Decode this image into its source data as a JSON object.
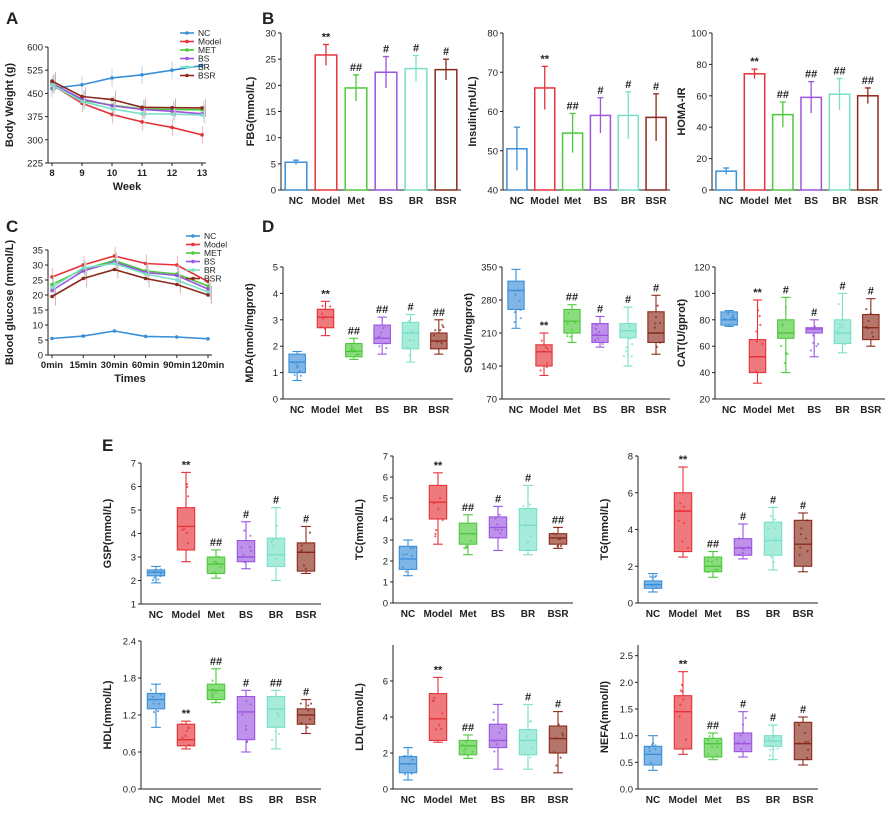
{
  "figure": {
    "panel_letters": [
      "A",
      "B",
      "C",
      "D",
      "E"
    ]
  },
  "colors": {
    "NC": "#3a8fd9",
    "Model": "#e53238",
    "MET": "#4cc93a",
    "BS": "#9b55e0",
    "BR": "#78e0c6",
    "BSR": "#8b2a1a"
  },
  "chart_data": [
    {
      "id": "A",
      "type": "line",
      "letter": "A",
      "title": "",
      "xlabel": "Week",
      "ylabel": "Body Weight (g)",
      "x": [
        8,
        9,
        10,
        11,
        12,
        13
      ],
      "xticks": [
        "8",
        "9",
        "10",
        "11",
        "12",
        "13"
      ],
      "ylim": [
        225,
        600
      ],
      "yticks": [
        "225",
        "300",
        "375",
        "450",
        "525",
        "600"
      ],
      "legend_position": "top-right",
      "series": [
        {
          "name": "NC",
          "values": [
            466,
            478,
            500,
            510,
            525,
            540
          ]
        },
        {
          "name": "Model",
          "values": [
            478,
            418,
            382,
            358,
            340,
            316
          ]
        },
        {
          "name": "MET",
          "values": [
            484,
            428,
            412,
            400,
            398,
            397
          ]
        },
        {
          "name": "BS",
          "values": [
            482,
            432,
            410,
            398,
            392,
            384
          ]
        },
        {
          "name": "BR",
          "values": [
            478,
            424,
            400,
            384,
            383,
            380
          ]
        },
        {
          "name": "BSR",
          "values": [
            490,
            440,
            430,
            405,
            404,
            403
          ]
        }
      ]
    },
    {
      "id": "B1",
      "type": "bar",
      "letter": "B",
      "ylabel": "FBG(mmol/L)",
      "categories": [
        "NC",
        "Model",
        "Met",
        "BS",
        "BR",
        "BSR"
      ],
      "ylim": [
        0,
        30
      ],
      "yticks": [
        "0",
        "5",
        "10",
        "15",
        "20",
        "25",
        "30"
      ],
      "values": [
        5.3,
        25.8,
        19.5,
        22.5,
        23.2,
        23.0
      ],
      "errors": [
        0.4,
        2.0,
        2.5,
        3.0,
        2.5,
        2.0
      ],
      "annotations": [
        "",
        "**",
        "##",
        "#",
        "#",
        "#"
      ]
    },
    {
      "id": "B2",
      "type": "bar",
      "ylabel": "Insulin(mU/L)",
      "categories": [
        "NC",
        "Model",
        "Met",
        "BS",
        "BR",
        "BSR"
      ],
      "ylim": [
        40,
        80
      ],
      "yticks": [
        "40",
        "50",
        "60",
        "70",
        "80"
      ],
      "values": [
        50.5,
        66.0,
        54.5,
        59.0,
        59.0,
        58.5
      ],
      "errors": [
        5.5,
        5.5,
        5.0,
        4.5,
        6.0,
        6.0
      ],
      "annotations": [
        "",
        "**",
        "##",
        "#",
        "#",
        "#"
      ]
    },
    {
      "id": "B3",
      "type": "bar",
      "ylabel": "HOMA-IR",
      "categories": [
        "NC",
        "Model",
        "Met",
        "BS",
        "BR",
        "BSR"
      ],
      "ylim": [
        0,
        100
      ],
      "yticks": [
        "0",
        "20",
        "40",
        "60",
        "80",
        "100"
      ],
      "values": [
        12,
        74,
        48,
        59,
        61,
        60
      ],
      "errors": [
        2,
        3,
        8,
        10,
        10,
        5
      ],
      "annotations": [
        "",
        "**",
        "##",
        "##",
        "##",
        "##"
      ]
    },
    {
      "id": "C",
      "type": "line",
      "letter": "C",
      "xlabel": "Times",
      "ylabel": "Blood glucose (mmol/L)",
      "xticks": [
        "0min",
        "15min",
        "30min",
        "60min",
        "90min",
        "120min"
      ],
      "ylim": [
        0,
        35
      ],
      "yticks": [
        "0",
        "5",
        "10",
        "15",
        "20",
        "25",
        "30",
        "35"
      ],
      "legend_position": "top-right",
      "series": [
        {
          "name": "NC",
          "values": [
            5.5,
            6.3,
            8.0,
            6.2,
            6.0,
            5.4
          ]
        },
        {
          "name": "Model",
          "values": [
            26.0,
            30.0,
            33.0,
            30.5,
            30.0,
            24.5
          ]
        },
        {
          "name": "MET",
          "values": [
            23.5,
            28.5,
            31.5,
            28.0,
            27.0,
            23.0
          ]
        },
        {
          "name": "BS",
          "values": [
            21.5,
            28.0,
            31.0,
            27.5,
            26.5,
            22.0
          ]
        },
        {
          "name": "BR",
          "values": [
            22.5,
            29.0,
            30.5,
            27.0,
            25.0,
            21.0
          ]
        },
        {
          "name": "BSR",
          "values": [
            19.5,
            25.5,
            28.5,
            25.5,
            23.5,
            20.0
          ]
        }
      ]
    },
    {
      "id": "D1",
      "type": "box",
      "letter": "D",
      "ylabel": "MDA(nmol/mgprot)",
      "categories": [
        "NC",
        "Model",
        "Met",
        "BS",
        "BR",
        "BSR"
      ],
      "ylim": [
        0,
        5
      ],
      "yticks": [
        "0",
        "1",
        "2",
        "3",
        "4",
        "5"
      ],
      "boxes": [
        [
          0.7,
          1.0,
          1.4,
          1.7,
          1.8
        ],
        [
          2.4,
          2.7,
          3.1,
          3.4,
          3.7
        ],
        [
          1.5,
          1.6,
          1.8,
          2.1,
          2.3
        ],
        [
          1.7,
          2.1,
          2.3,
          2.8,
          3.1
        ],
        [
          1.4,
          1.9,
          2.5,
          2.9,
          3.2
        ],
        [
          1.7,
          1.9,
          2.2,
          2.5,
          3.0
        ]
      ],
      "annotations": [
        "",
        "**",
        "##",
        "##",
        "#",
        "##"
      ]
    },
    {
      "id": "D2",
      "type": "box",
      "ylabel": "SOD(U/mgprot)",
      "categories": [
        "NC",
        "Model",
        "Met",
        "BS",
        "BR",
        "BSR"
      ],
      "ylim": [
        70,
        350
      ],
      "yticks": [
        "70",
        "140",
        "210",
        "280",
        "350"
      ],
      "boxes": [
        [
          220,
          260,
          300,
          320,
          345
        ],
        [
          120,
          140,
          170,
          185,
          210
        ],
        [
          190,
          210,
          235,
          260,
          270
        ],
        [
          180,
          190,
          205,
          230,
          245
        ],
        [
          140,
          200,
          215,
          230,
          265
        ],
        [
          165,
          190,
          210,
          255,
          290
        ]
      ],
      "annotations": [
        "",
        "**",
        "##",
        "#",
        "#",
        "#"
      ]
    },
    {
      "id": "D3",
      "type": "box",
      "ylabel": "CAT(U/gprot)",
      "categories": [
        "NC",
        "Model",
        "Met",
        "BS",
        "BR",
        "BSR"
      ],
      "ylim": [
        20,
        120
      ],
      "yticks": [
        "20",
        "40",
        "60",
        "80",
        "100",
        "120"
      ],
      "boxes": [
        [
          75,
          76,
          80,
          86,
          87
        ],
        [
          32,
          40,
          52,
          65,
          95
        ],
        [
          40,
          66,
          70,
          80,
          97
        ],
        [
          52,
          70,
          73,
          74,
          80
        ],
        [
          55,
          62,
          70,
          80,
          100
        ],
        [
          60,
          65,
          74,
          84,
          96
        ]
      ],
      "annotations": [
        "",
        "**",
        "#",
        "#",
        "#",
        "#"
      ]
    },
    {
      "id": "E1",
      "type": "box",
      "letter": "E",
      "ylabel": "GSP(mmol/L)",
      "categories": [
        "NC",
        "Model",
        "Met",
        "BS",
        "BR",
        "BSR"
      ],
      "ylim": [
        1,
        7
      ],
      "yticks": [
        "1",
        "2",
        "3",
        "4",
        "5",
        "6",
        "7"
      ],
      "boxes": [
        [
          1.9,
          2.2,
          2.35,
          2.45,
          2.6
        ],
        [
          2.8,
          3.3,
          4.3,
          5.1,
          6.6
        ],
        [
          2.1,
          2.3,
          2.7,
          3.0,
          3.3
        ],
        [
          2.5,
          2.8,
          3.0,
          3.7,
          4.5
        ],
        [
          2.0,
          2.6,
          3.1,
          3.8,
          5.1
        ],
        [
          2.3,
          2.4,
          3.2,
          3.6,
          4.3
        ]
      ],
      "annotations": [
        "",
        "**",
        "##",
        "#",
        "#",
        "#"
      ]
    },
    {
      "id": "E2",
      "type": "box",
      "ylabel": "TC(mmol/L)",
      "categories": [
        "NC",
        "Model",
        "Met",
        "BS",
        "BR",
        "BSR"
      ],
      "ylim": [
        0,
        7
      ],
      "yticks": [
        "0",
        "1",
        "2",
        "3",
        "4",
        "5",
        "6",
        "7"
      ],
      "boxes": [
        [
          1.3,
          1.6,
          2.1,
          2.7,
          3.0
        ],
        [
          2.8,
          4.0,
          4.8,
          5.6,
          6.2
        ],
        [
          2.3,
          2.8,
          3.3,
          3.8,
          4.2
        ],
        [
          2.5,
          3.1,
          3.6,
          4.1,
          4.6
        ],
        [
          2.3,
          2.5,
          3.7,
          4.5,
          5.6
        ],
        [
          2.6,
          2.8,
          3.1,
          3.3,
          3.6
        ]
      ],
      "annotations": [
        "",
        "**",
        "##",
        "#",
        "#",
        "##"
      ]
    },
    {
      "id": "E3",
      "type": "box",
      "ylabel": "TG(mmol/L)",
      "categories": [
        "NC",
        "Model",
        "Met",
        "BS",
        "BR",
        "BSR"
      ],
      "ylim": [
        0,
        8
      ],
      "yticks": [
        "0",
        "2",
        "4",
        "6",
        "8"
      ],
      "boxes": [
        [
          0.6,
          0.8,
          1.0,
          1.2,
          1.6
        ],
        [
          2.5,
          2.8,
          5.0,
          6.0,
          7.4
        ],
        [
          1.4,
          1.7,
          2.0,
          2.5,
          2.8
        ],
        [
          2.4,
          2.6,
          3.0,
          3.5,
          4.3
        ],
        [
          1.8,
          2.6,
          3.4,
          4.4,
          5.2
        ],
        [
          1.7,
          2.0,
          3.2,
          4.5,
          4.9
        ]
      ],
      "annotations": [
        "",
        "**",
        "##",
        "#",
        "#",
        "#"
      ]
    },
    {
      "id": "E4",
      "type": "box",
      "ylabel": "HDL(mmol/L)",
      "categories": [
        "NC",
        "Model",
        "Met",
        "BS",
        "BR",
        "BSR"
      ],
      "ylim": [
        0,
        2.4
      ],
      "yticks": [
        "0.0",
        "0.6",
        "1.2",
        "1.8",
        "2.4"
      ],
      "boxes": [
        [
          1.0,
          1.3,
          1.45,
          1.55,
          1.7
        ],
        [
          0.65,
          0.7,
          0.8,
          1.05,
          1.1
        ],
        [
          1.4,
          1.45,
          1.6,
          1.7,
          1.95
        ],
        [
          0.6,
          0.8,
          1.25,
          1.5,
          1.6
        ],
        [
          0.65,
          1.0,
          1.3,
          1.5,
          1.6
        ],
        [
          0.9,
          1.05,
          1.2,
          1.3,
          1.45
        ]
      ],
      "annotations": [
        "",
        "**",
        "##",
        "#",
        "##",
        "#"
      ]
    },
    {
      "id": "E5",
      "type": "box",
      "ylabel": "LDL(mmol/L)",
      "categories": [
        "NC",
        "Model",
        "Met",
        "BS",
        "BR",
        "BSR"
      ],
      "ylim": [
        0,
        8
      ],
      "yticks": [
        "0",
        "2",
        "4",
        "6"
      ],
      "boxes": [
        [
          0.5,
          0.9,
          1.4,
          1.8,
          2.3
        ],
        [
          2.6,
          2.7,
          3.9,
          5.3,
          6.2
        ],
        [
          1.7,
          1.9,
          2.4,
          2.7,
          3.0
        ],
        [
          1.1,
          2.3,
          2.7,
          3.6,
          4.7
        ],
        [
          1.1,
          1.9,
          2.7,
          3.3,
          4.7
        ],
        [
          0.9,
          2.0,
          2.8,
          3.5,
          4.3
        ]
      ],
      "annotations": [
        "",
        "**",
        "##",
        "",
        "#",
        "#"
      ]
    },
    {
      "id": "E6",
      "type": "box",
      "ylabel": "NEFA(mmol/l)",
      "categories": [
        "NC",
        "Model",
        "Met",
        "BS",
        "BR",
        "BSR"
      ],
      "ylim": [
        0,
        2.7
      ],
      "yticks": [
        "0.0",
        "0.5",
        "1.0",
        "1.5",
        "2.0",
        "2.5"
      ],
      "boxes": [
        [
          0.35,
          0.45,
          0.65,
          0.8,
          1.0
        ],
        [
          0.65,
          0.75,
          1.45,
          1.75,
          2.2
        ],
        [
          0.55,
          0.6,
          0.85,
          0.95,
          1.05
        ],
        [
          0.6,
          0.7,
          0.85,
          1.05,
          1.45
        ],
        [
          0.55,
          0.8,
          0.9,
          1.0,
          1.2
        ],
        [
          0.45,
          0.55,
          0.85,
          1.25,
          1.35
        ]
      ],
      "annotations": [
        "",
        "**",
        "##",
        "#",
        "#",
        "#"
      ]
    }
  ]
}
